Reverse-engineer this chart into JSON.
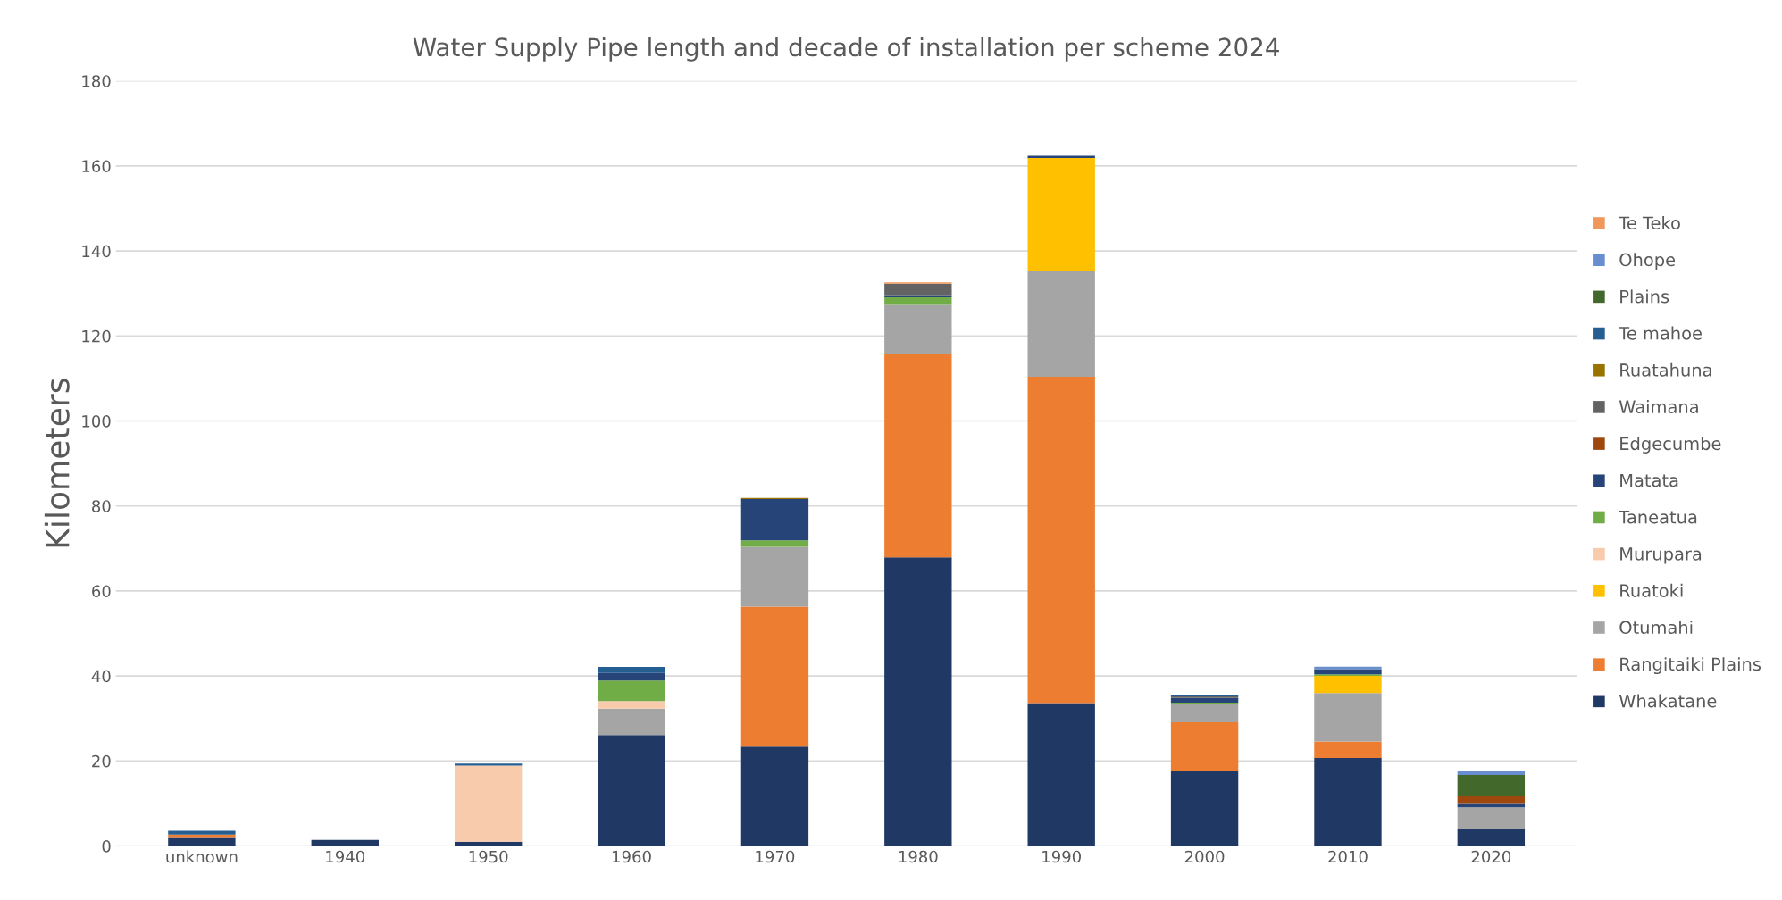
{
  "chart_data": {
    "type": "bar",
    "stacked": true,
    "title": "Water Supply Pipe length and decade of installation per scheme 2024",
    "ylabel": "Kilometers",
    "categories": [
      "unknown",
      "1940",
      "1950",
      "1960",
      "1970",
      "1980",
      "1990",
      "2000",
      "2010",
      "2020"
    ],
    "ylim": [
      0,
      180
    ],
    "yticks": [
      0,
      20,
      40,
      60,
      80,
      100,
      120,
      140,
      160,
      180
    ],
    "grid": "y",
    "legend": "right",
    "series": [
      {
        "name": "Whakatane",
        "color": "#203864",
        "values": [
          1.9,
          1.4,
          1.0,
          26.1,
          23.4,
          67.9,
          33.6,
          17.6,
          20.7,
          4.0
        ]
      },
      {
        "name": "Rangitaiki Plains",
        "color": "#ed7d31",
        "values": [
          0.8,
          null,
          null,
          null,
          32.9,
          47.9,
          76.8,
          11.5,
          3.9,
          null
        ]
      },
      {
        "name": "Otumahi",
        "color": "#a5a5a5",
        "values": [
          null,
          null,
          null,
          6.2,
          14.1,
          11.5,
          24.9,
          4.2,
          11.4,
          5.1
        ]
      },
      {
        "name": "Ruatoki",
        "color": "#ffc000",
        "values": [
          null,
          null,
          null,
          null,
          null,
          null,
          26.6,
          null,
          4.0,
          null
        ]
      },
      {
        "name": "Murupara",
        "color": "#f8cbad",
        "values": [
          null,
          null,
          17.9,
          1.8,
          null,
          null,
          null,
          null,
          null,
          null
        ]
      },
      {
        "name": "Taneatua",
        "color": "#70ad47",
        "values": [
          null,
          null,
          null,
          4.8,
          1.5,
          1.8,
          null,
          0.4,
          0.4,
          null
        ]
      },
      {
        "name": "Matata",
        "color": "#264478",
        "values": [
          null,
          null,
          null,
          1.8,
          9.7,
          0.5,
          0.5,
          1.1,
          1.2,
          1.0
        ]
      },
      {
        "name": "Edgecumbe",
        "color": "#9e480e",
        "values": [
          null,
          null,
          null,
          null,
          null,
          null,
          null,
          null,
          null,
          1.8
        ]
      },
      {
        "name": "Waimana",
        "color": "#636363",
        "values": [
          null,
          null,
          null,
          null,
          null,
          2.7,
          null,
          0.4,
          null,
          null
        ]
      },
      {
        "name": "Ruatahuna",
        "color": "#997300",
        "values": [
          null,
          null,
          null,
          null,
          0.3,
          null,
          null,
          null,
          null,
          null
        ]
      },
      {
        "name": "Te mahoe",
        "color": "#255e91",
        "values": [
          0.9,
          null,
          0.5,
          1.4,
          null,
          null,
          null,
          0.4,
          null,
          null
        ]
      },
      {
        "name": "Plains",
        "color": "#43682b",
        "values": [
          null,
          null,
          null,
          null,
          null,
          null,
          null,
          null,
          null,
          4.8
        ]
      },
      {
        "name": "Ohope",
        "color": "#698ed0",
        "values": [
          null,
          null,
          null,
          null,
          null,
          null,
          null,
          null,
          0.6,
          0.9
        ]
      },
      {
        "name": "Te Teko",
        "color": "#f1975a",
        "values": [
          null,
          null,
          null,
          null,
          null,
          0.3,
          null,
          null,
          null,
          null
        ]
      }
    ]
  }
}
